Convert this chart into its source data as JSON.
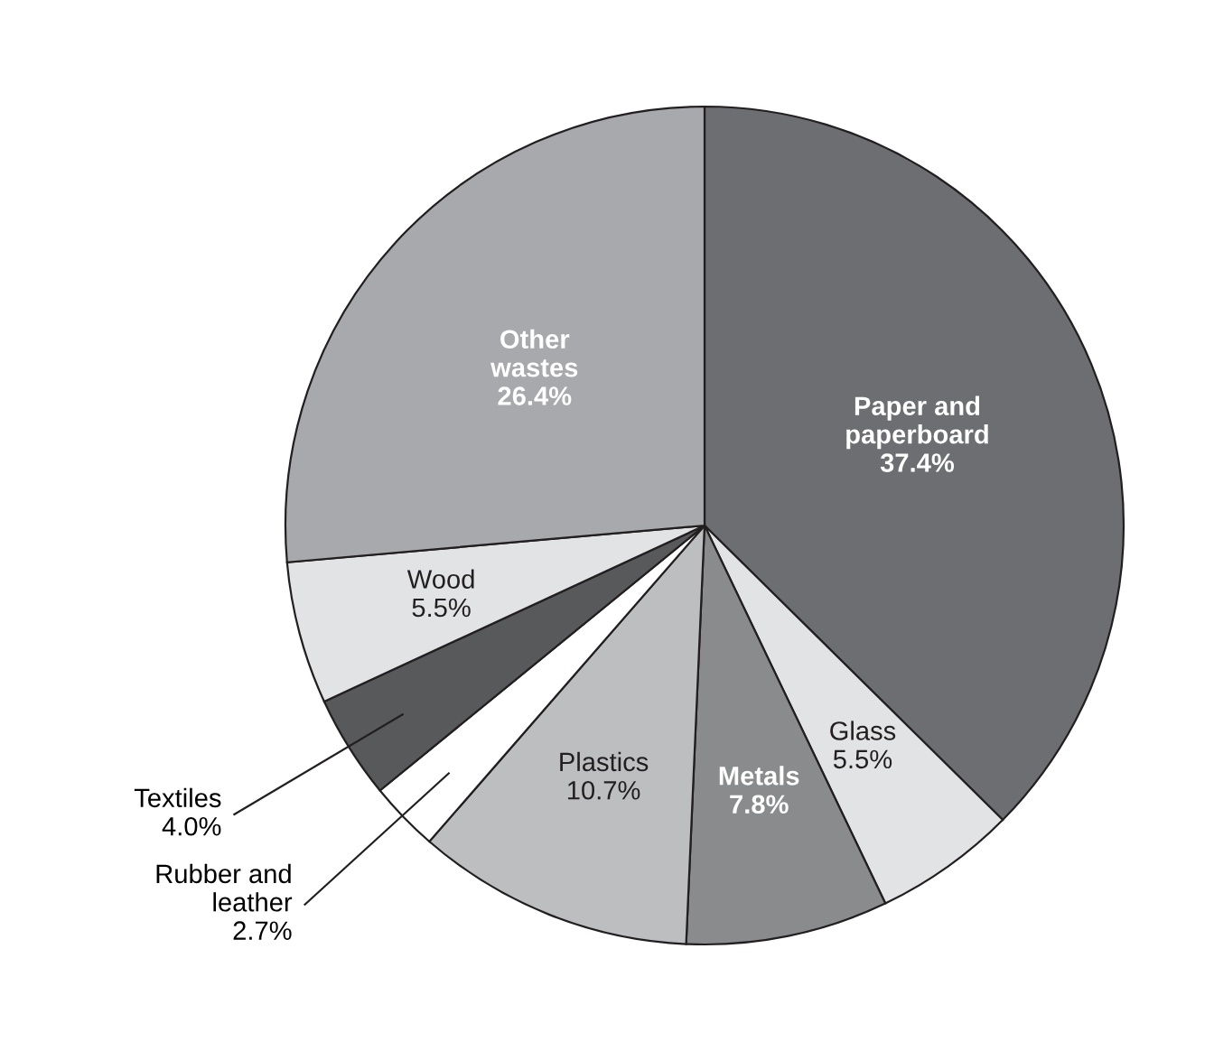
{
  "chart_data": {
    "type": "pie",
    "categories": [
      "Paper and\npaperboard",
      "Glass",
      "Metals",
      "Plastics",
      "Rubber and\nleather",
      "Textiles",
      "Wood",
      "Other\nwastes"
    ],
    "values": [
      37.4,
      5.5,
      7.8,
      10.7,
      2.7,
      4.0,
      5.5,
      26.4
    ],
    "colors": [
      "#6d6e71",
      "#e2e3e4",
      "#8a8b8d",
      "#bcbec0",
      "#ffffff",
      "#58595b",
      "#e2e3e4",
      "#a7a9ac"
    ],
    "value_labels": [
      "37.4%",
      "5.5%",
      "7.8%",
      "10.7%",
      "2.7%",
      "4.0%",
      "5.5%",
      "26.4%"
    ]
  }
}
